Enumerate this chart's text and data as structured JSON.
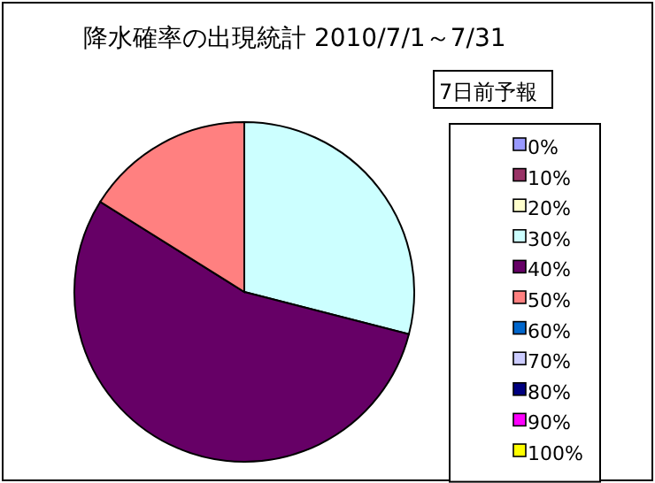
{
  "chart_data": {
    "type": "pie",
    "title": "降水確率の出現統計 2010/7/1～7/31",
    "legend_title": "7日前予報",
    "legend": "right",
    "categories": [
      "0%",
      "10%",
      "20%",
      "30%",
      "40%",
      "50%",
      "60%",
      "70%",
      "80%",
      "90%",
      "100%"
    ],
    "values": [
      0,
      0,
      0,
      29.0,
      54.9,
      16.1,
      0,
      0,
      0,
      0,
      0
    ],
    "colors": [
      "#9999ff",
      "#993366",
      "#ffffcc",
      "#ccffff",
      "#660066",
      "#ff8080",
      "#0066cc",
      "#ccccff",
      "#000080",
      "#ff00ff",
      "#ffff00"
    ]
  }
}
